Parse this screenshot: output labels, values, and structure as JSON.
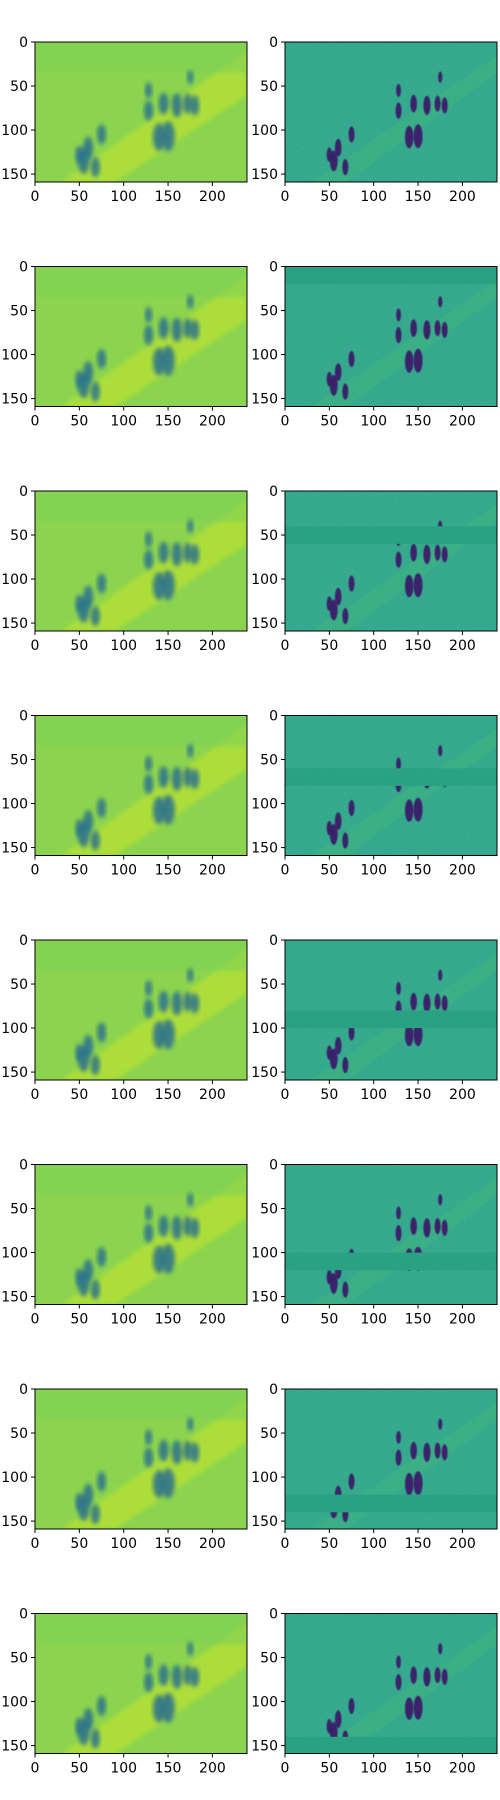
{
  "figure": {
    "rows": 8,
    "columns": 2,
    "colormap": "viridis",
    "colors": {
      "axes_edge": "#000000",
      "left_panel_base": "#8cd44f",
      "left_panel_light": "#c7e52a",
      "right_panel_base": "#2aa183",
      "right_panel_light": "#4cc26a",
      "figure_dark": "#3b1a6b",
      "figure_mid": "#2c6f8e"
    }
  },
  "chart_data": {
    "type": "heatmap",
    "description_of_grid": "8 x 2 grid of image panels (left: smoothed/reconstructed frame, right: high-contrast frame with a masked horizontal band)",
    "x_range": [
      0,
      239
    ],
    "y_range": [
      159,
      0
    ],
    "x_ticks": [
      "0",
      "50",
      "100",
      "150",
      "200"
    ],
    "x_tick_values": [
      0,
      50,
      100,
      150,
      200
    ],
    "y_ticks": [
      "0",
      "50",
      "100",
      "150"
    ],
    "y_tick_values": [
      0,
      50,
      100,
      150
    ],
    "panels": [
      {
        "row": 1,
        "masked_band_y": null
      },
      {
        "row": 2,
        "masked_band_y": [
          0,
          20
        ]
      },
      {
        "row": 3,
        "masked_band_y": [
          40,
          60
        ]
      },
      {
        "row": 4,
        "masked_band_y": [
          60,
          80
        ]
      },
      {
        "row": 5,
        "masked_band_y": [
          80,
          100
        ]
      },
      {
        "row": 6,
        "masked_band_y": [
          100,
          120
        ]
      },
      {
        "row": 7,
        "masked_band_y": [
          120,
          140
        ]
      },
      {
        "row": 8,
        "masked_band_y": [
          140,
          160
        ]
      }
    ]
  }
}
